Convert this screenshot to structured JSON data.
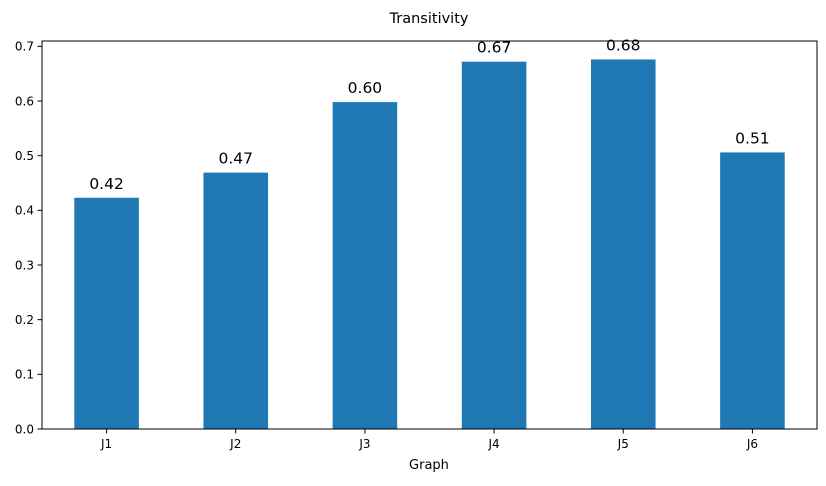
{
  "chart_data": {
    "type": "bar",
    "title": "Transitivity",
    "xlabel": "Graph",
    "ylabel": "",
    "categories": [
      "J1",
      "J2",
      "J3",
      "J4",
      "J5",
      "J6"
    ],
    "values": [
      0.423,
      0.469,
      0.598,
      0.672,
      0.676,
      0.506
    ],
    "data_labels": [
      "0.42",
      "0.47",
      "0.60",
      "0.67",
      "0.68",
      "0.51"
    ],
    "ylim": [
      0,
      0.7
    ],
    "yticks": [
      0.0,
      0.1,
      0.2,
      0.3,
      0.4,
      0.5,
      0.6,
      0.7
    ],
    "ytick_labels": [
      "0.0",
      "0.1",
      "0.2",
      "0.3",
      "0.4",
      "0.5",
      "0.6",
      "0.7"
    ],
    "bar_color": "#1f77b4",
    "grid": false,
    "legend": "none"
  }
}
